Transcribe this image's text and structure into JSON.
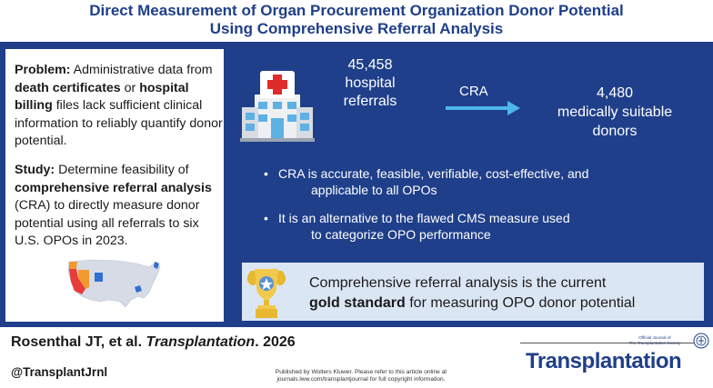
{
  "title": {
    "line1": "Direct Measurement of Organ Procurement Organization Donor Potential",
    "line2": "Using Comprehensive Referral Analysis"
  },
  "problem": {
    "label": "Problem:",
    "text_a": " Administrative data from ",
    "term1": "death certificates",
    "text_b": " or ",
    "term2": "hospital billing",
    "text_c": " files lack sufficient clinical information to reliably quantify donor potential."
  },
  "study": {
    "label": "Study:",
    "text_a": " Determine feasibility of ",
    "term": "comprehensive referral analysis",
    "text_b": " (CRA) to directly measure donor potential using all referrals to six U.S. OPOs in 2023."
  },
  "flow": {
    "hospital_count": "45,458",
    "hospital_label_1": "hospital",
    "hospital_label_2": "referrals",
    "method": "CRA",
    "donor_count": "4,480",
    "donor_label_1": "medically suitable",
    "donor_label_2": "donors"
  },
  "bullets": [
    {
      "line1": "CRA is accurate, feasible, verifiable, cost-effective, and",
      "line2": "applicable to all OPOs"
    },
    {
      "line1": "It is an alternative to the flawed CMS measure used",
      "line2": "to categorize OPO performance"
    }
  ],
  "conclusion": {
    "line1": "Comprehensive referral analysis is the current",
    "bold": "gold standard",
    "line2_rest": " for measuring OPO donor potential"
  },
  "citation": {
    "authors": "Rosenthal JT, et al. ",
    "journal": "Transplantation",
    "year": ". 2026"
  },
  "handle": "@TransplantJrnl",
  "publisher": {
    "line1": "Published by Wolters Kluwer. Please refer to this article online at",
    "line2": "journals.lww.com/transplantjournal for full copyright information."
  },
  "journal": {
    "small_line1": "Official Journal of",
    "small_line2": "The Transplantation Society",
    "name": "Transplantation"
  },
  "colors": {
    "navy": "#1f3f8a",
    "light_blue_box": "#dbe6f5",
    "arrow": "#4fb6ea",
    "trophy_gold": "#e8b830",
    "map_red": "#e83b3b",
    "map_orange": "#f29a2e",
    "map_blue": "#2f6fd0"
  },
  "icons": [
    "hospital-icon",
    "right-arrow-icon",
    "trophy-icon",
    "us-map-icon",
    "journal-seal-icon"
  ]
}
